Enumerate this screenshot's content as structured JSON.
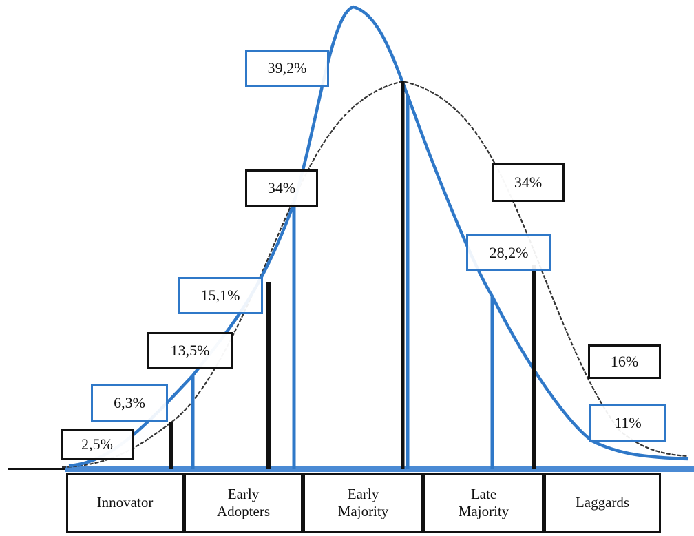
{
  "diagram": {
    "type": "adoption-curve-comparison",
    "categories": [
      "Innovator",
      "Early Adopters",
      "Early Majority",
      "Late Majority",
      "Laggards"
    ],
    "category_lines": [
      [
        "Innovator"
      ],
      [
        "Early",
        "Adopters"
      ],
      [
        "Early",
        "Majority"
      ],
      [
        "Late",
        "Majority"
      ],
      [
        "Laggards"
      ]
    ],
    "black_series": {
      "color": "#111111",
      "values_label": [
        "2,5%",
        "13,5%",
        "34%",
        "34%",
        "16%"
      ]
    },
    "blue_series": {
      "color": "#2f78c8",
      "values_label": [
        "6,3%",
        "15,1%",
        "39,2%",
        "28,2%",
        "11%"
      ]
    }
  }
}
